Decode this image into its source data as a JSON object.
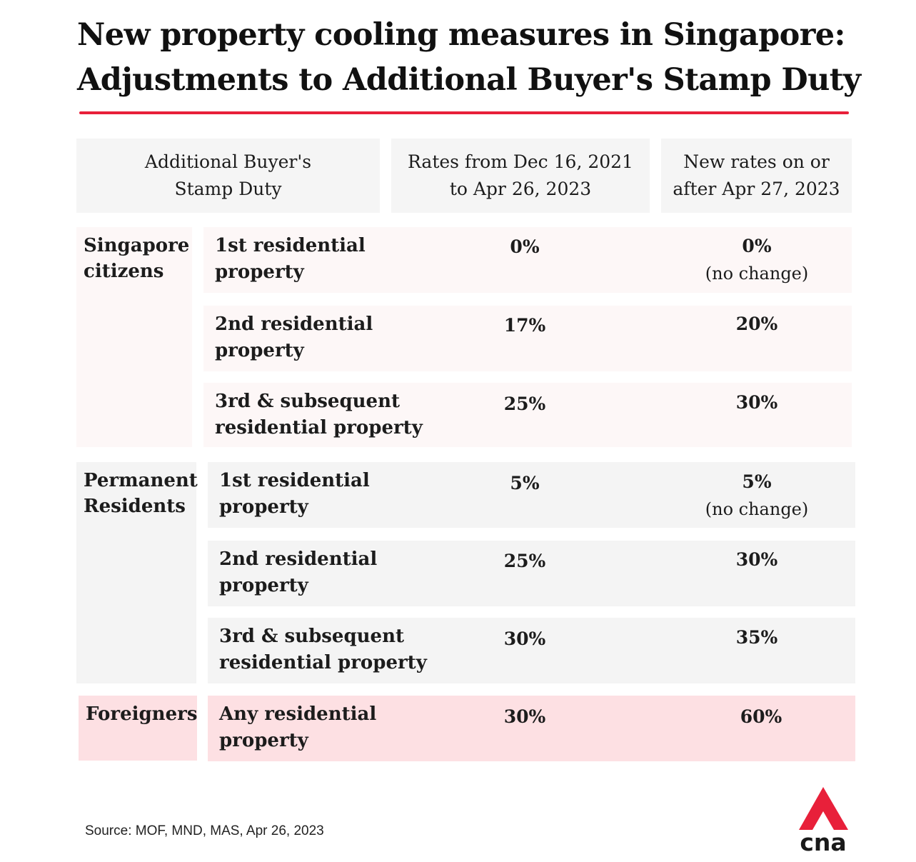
{
  "title": {
    "line1": "New property cooling measures in Singapore:",
    "line2": "Adjustments to Additional Buyer's Stamp Duty"
  },
  "header": {
    "col1": "Additional Buyer's Stamp Duty",
    "col2": "Rates from Dec 16, 2021 to Apr 26, 2023",
    "col3": "New rates on or after Apr 27, 2023"
  },
  "groups": {
    "citizens": {
      "label": "Singapore citizens",
      "rows": [
        {
          "property": "1st residential property",
          "old_rate": "0%",
          "new_rate": "0%",
          "note": "(no change)"
        },
        {
          "property": "2nd residential property",
          "old_rate": "17%",
          "new_rate": "20%",
          "note": ""
        },
        {
          "property": "3rd & subsequent residential property",
          "old_rate": "25%",
          "new_rate": "30%",
          "note": ""
        }
      ]
    },
    "prs": {
      "label": "Permanent Residents",
      "rows": [
        {
          "property": "1st residential property",
          "old_rate": "5%",
          "new_rate": "5%",
          "note": "(no change)"
        },
        {
          "property": "2nd residential property",
          "old_rate": "25%",
          "new_rate": "30%",
          "note": ""
        },
        {
          "property": "3rd & subsequent residential property",
          "old_rate": "30%",
          "new_rate": "35%",
          "note": ""
        }
      ]
    },
    "foreigners": {
      "label": "Foreigners",
      "rows": [
        {
          "property": "Any residential property",
          "old_rate": "30%",
          "new_rate": "60%",
          "note": ""
        }
      ]
    }
  },
  "source": "Source: MOF, MND, MAS, Apr 26, 2023",
  "logo": {
    "text": "cna",
    "icon": "cna-logo-icon"
  },
  "colors": {
    "accent": "#e8203a",
    "citizens_bg": "#fdf7f7",
    "prs_bg": "#f4f4f4",
    "foreigners_bg": "#fde0e3",
    "header_bg": "#f5f5f5"
  }
}
